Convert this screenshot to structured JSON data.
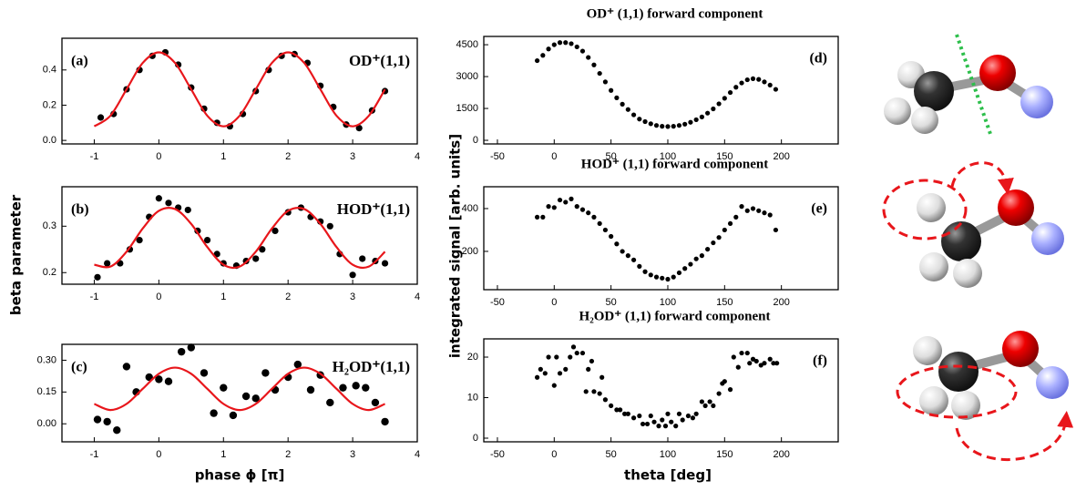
{
  "shared_labels": {
    "left_ylabel": "beta parameter",
    "left_xlabel": "phase ϕ [π]",
    "right_ylabel": "integrated signal [arb. units]",
    "right_xlabel": "theta [deg]"
  },
  "chart_data": [
    {
      "type": "scatter",
      "panel_label": "(a)",
      "annotation": "OD⁺(1,1)",
      "xlim": [
        -1.5,
        4
      ],
      "xticks": [
        -1,
        0,
        1,
        2,
        3,
        4
      ],
      "ylim": [
        -0.02,
        0.58
      ],
      "yticks": [
        {
          "value": 0,
          "label": "0.0"
        },
        0.2,
        0.4
      ],
      "series": [
        {
          "type": "scatter",
          "color": "#000000",
          "x": [
            -0.9,
            -0.7,
            -0.5,
            -0.3,
            -0.1,
            0.1,
            0.3,
            0.5,
            0.7,
            0.9,
            1.1,
            1.3,
            1.5,
            1.7,
            1.9,
            2.1,
            2.3,
            2.5,
            2.7,
            2.9,
            3.1,
            3.3,
            3.5
          ],
          "values": [
            0.13,
            0.15,
            0.29,
            0.4,
            0.48,
            0.5,
            0.43,
            0.3,
            0.18,
            0.1,
            0.08,
            0.15,
            0.28,
            0.4,
            0.48,
            0.49,
            0.44,
            0.31,
            0.19,
            0.09,
            0.07,
            0.17,
            0.28
          ]
        },
        {
          "type": "line",
          "color": "#e8161b",
          "x": [
            -1,
            -0.75,
            -0.5,
            -0.25,
            0,
            0.25,
            0.5,
            0.75,
            1,
            1.25,
            1.5,
            1.75,
            2,
            2.25,
            2.5,
            2.75,
            3,
            3.25,
            3.5
          ],
          "values": [
            0.08,
            0.14,
            0.29,
            0.44,
            0.5,
            0.44,
            0.29,
            0.14,
            0.08,
            0.14,
            0.29,
            0.44,
            0.5,
            0.44,
            0.29,
            0.14,
            0.08,
            0.14,
            0.29
          ]
        }
      ]
    },
    {
      "type": "scatter",
      "panel_label": "(b)",
      "annotation": "HOD⁺(1,1)",
      "xlim": [
        -1.5,
        4
      ],
      "xticks": [
        -1,
        0,
        1,
        2,
        3,
        4
      ],
      "ylim": [
        0.175,
        0.385
      ],
      "yticks": [
        0.2,
        0.3
      ],
      "series": [
        {
          "type": "scatter",
          "color": "#000000",
          "x": [
            -0.95,
            -0.8,
            -0.6,
            -0.45,
            -0.3,
            -0.15,
            0,
            0.15,
            0.3,
            0.45,
            0.6,
            0.75,
            0.9,
            1,
            1.2,
            1.35,
            1.5,
            1.6,
            1.8,
            2,
            2.2,
            2.35,
            2.5,
            2.65,
            2.8,
            3,
            3.15,
            3.35,
            3.5
          ],
          "values": [
            0.19,
            0.22,
            0.22,
            0.25,
            0.27,
            0.32,
            0.36,
            0.35,
            0.34,
            0.335,
            0.29,
            0.27,
            0.24,
            0.22,
            0.215,
            0.225,
            0.23,
            0.25,
            0.29,
            0.33,
            0.34,
            0.32,
            0.31,
            0.3,
            0.24,
            0.195,
            0.23,
            0.225,
            0.22
          ]
        },
        {
          "type": "line",
          "color": "#e8161b",
          "x": [
            -1,
            -0.75,
            -0.5,
            -0.25,
            0,
            0.25,
            0.5,
            0.75,
            1,
            1.25,
            1.5,
            1.75,
            2,
            2.25,
            2.5,
            2.75,
            3,
            3.25,
            3.5
          ],
          "values": [
            0.217,
            0.213,
            0.245,
            0.295,
            0.333,
            0.337,
            0.305,
            0.255,
            0.217,
            0.213,
            0.245,
            0.295,
            0.333,
            0.337,
            0.305,
            0.255,
            0.217,
            0.213,
            0.245
          ]
        }
      ]
    },
    {
      "type": "scatter",
      "panel_label": "(c)",
      "annotation": "H₂OD⁺(1,1)",
      "xlim": [
        -1.5,
        4
      ],
      "xticks": [
        -1,
        0,
        1,
        2,
        3,
        4
      ],
      "ylim": [
        -0.085,
        0.375
      ],
      "yticks": [
        {
          "value": 0,
          "label": "0.00"
        },
        {
          "value": 0.15,
          "label": "0.15"
        },
        {
          "value": 0.3,
          "label": "0.30"
        }
      ],
      "series": [
        {
          "type": "scatter",
          "color": "#000000",
          "x": [
            -0.95,
            -0.8,
            -0.65,
            -0.5,
            -0.35,
            -0.15,
            0,
            0.15,
            0.35,
            0.5,
            0.7,
            0.85,
            1,
            1.15,
            1.35,
            1.5,
            1.65,
            1.8,
            2,
            2.15,
            2.35,
            2.5,
            2.65,
            2.85,
            3.05,
            3.2,
            3.35,
            3.5
          ],
          "values": [
            0.02,
            0.01,
            -0.03,
            0.27,
            0.15,
            0.22,
            0.21,
            0.2,
            0.34,
            0.36,
            0.24,
            0.05,
            0.17,
            0.04,
            0.13,
            0.12,
            0.24,
            0.16,
            0.22,
            0.28,
            0.16,
            0.23,
            0.1,
            0.17,
            0.18,
            0.17,
            0.1,
            0.01
          ]
        },
        {
          "type": "line",
          "color": "#e8161b",
          "x": [
            -1,
            -0.75,
            -0.5,
            -0.25,
            0,
            0.25,
            0.5,
            0.75,
            1,
            1.25,
            1.5,
            1.75,
            2,
            2.25,
            2.5,
            2.75,
            3,
            3.25,
            3.5
          ],
          "values": [
            0.094,
            0.065,
            0.094,
            0.165,
            0.236,
            0.265,
            0.236,
            0.165,
            0.094,
            0.065,
            0.094,
            0.165,
            0.236,
            0.265,
            0.236,
            0.165,
            0.094,
            0.065,
            0.094
          ]
        }
      ]
    },
    {
      "type": "scatter",
      "title": "OD⁺ (1,1) forward component",
      "panel_label": "(d)",
      "xlim": [
        -62,
        250
      ],
      "xticks": [
        -50,
        0,
        50,
        100,
        150,
        200
      ],
      "ylim": [
        -170,
        4890
      ],
      "yticks": [
        0,
        1500,
        3000,
        4500
      ],
      "series": [
        {
          "type": "scatter",
          "color": "#000000",
          "x": [
            -15,
            -10,
            -5,
            0,
            5,
            10,
            15,
            20,
            25,
            30,
            35,
            40,
            45,
            50,
            55,
            60,
            65,
            70,
            75,
            80,
            85,
            90,
            95,
            100,
            105,
            110,
            115,
            120,
            125,
            130,
            135,
            140,
            145,
            150,
            155,
            160,
            165,
            170,
            175,
            180,
            185,
            190,
            195
          ],
          "values": [
            3750,
            4000,
            4300,
            4500,
            4600,
            4600,
            4550,
            4400,
            4200,
            3900,
            3550,
            3150,
            2750,
            2350,
            2000,
            1700,
            1450,
            1200,
            1000,
            880,
            780,
            700,
            660,
            650,
            660,
            700,
            760,
            850,
            970,
            1100,
            1280,
            1480,
            1720,
            1980,
            2250,
            2500,
            2700,
            2850,
            2900,
            2870,
            2750,
            2600,
            2400
          ]
        }
      ]
    },
    {
      "type": "scatter",
      "title": "HOD⁺ (1,1) forward component",
      "panel_label": "(e)",
      "xlim": [
        -62,
        250
      ],
      "xticks": [
        -50,
        0,
        50,
        100,
        150,
        200
      ],
      "ylim": [
        21,
        502
      ],
      "yticks": [
        200,
        400
      ],
      "series": [
        {
          "type": "scatter",
          "color": "#000000",
          "x": [
            -15,
            -10,
            -5,
            0,
            5,
            10,
            15,
            20,
            25,
            30,
            35,
            40,
            45,
            50,
            55,
            60,
            65,
            70,
            75,
            80,
            85,
            90,
            95,
            100,
            105,
            110,
            115,
            120,
            125,
            130,
            135,
            140,
            145,
            150,
            155,
            160,
            165,
            170,
            175,
            180,
            185,
            190,
            195
          ],
          "values": [
            360,
            360,
            410,
            405,
            440,
            430,
            445,
            410,
            395,
            380,
            360,
            330,
            300,
            270,
            235,
            200,
            180,
            160,
            130,
            105,
            90,
            80,
            75,
            70,
            80,
            100,
            120,
            140,
            165,
            180,
            210,
            240,
            265,
            300,
            330,
            360,
            410,
            390,
            400,
            390,
            380,
            370,
            300
          ]
        }
      ]
    },
    {
      "type": "scatter",
      "title": "H₂OD⁺ (1,1) forward component",
      "panel_label": "(f)",
      "xlim": [
        -62,
        250
      ],
      "xticks": [
        -50,
        0,
        50,
        100,
        150,
        200
      ],
      "ylim": [
        -0.9,
        24.5
      ],
      "yticks": [
        0,
        10,
        20
      ],
      "series": [
        {
          "type": "scatter",
          "color": "#000000",
          "x": [
            -15,
            -12,
            -8,
            -5,
            0,
            2,
            5,
            10,
            14,
            17,
            20,
            25,
            28,
            30,
            33,
            35,
            40,
            42,
            45,
            50,
            55,
            58,
            62,
            65,
            70,
            75,
            78,
            82,
            85,
            88,
            92,
            95,
            98,
            100,
            103,
            107,
            110,
            113,
            118,
            122,
            125,
            130,
            133,
            137,
            140,
            145,
            148,
            150,
            155,
            158,
            162,
            165,
            170,
            172,
            175,
            178,
            182,
            185,
            190,
            193,
            196
          ],
          "values": [
            15,
            17,
            16,
            20,
            13,
            20,
            16,
            17,
            20,
            22.5,
            21,
            21,
            11.5,
            17,
            19,
            11.5,
            11,
            15,
            9.5,
            8,
            7,
            7,
            6,
            6,
            5,
            5.5,
            3.5,
            3.5,
            5.5,
            4,
            3,
            4.5,
            3,
            6,
            4,
            3,
            6,
            4.5,
            5.5,
            5,
            6,
            9,
            8,
            9,
            8,
            11,
            13.5,
            14,
            12,
            20,
            17.5,
            21,
            21,
            18.5,
            19.5,
            19,
            18,
            18.5,
            19.5,
            18.5,
            18.5
          ]
        }
      ]
    }
  ]
}
